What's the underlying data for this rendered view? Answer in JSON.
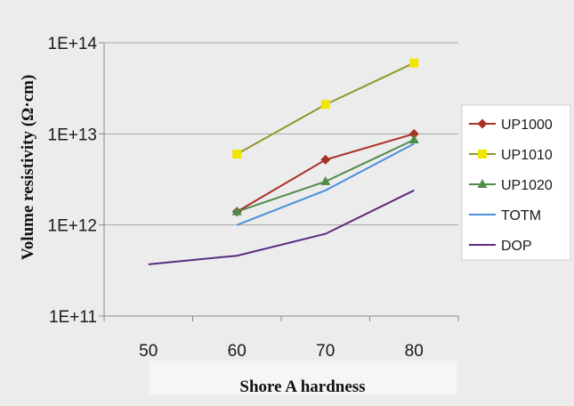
{
  "chart_data": {
    "type": "line",
    "title": "",
    "xlabel": "Shore A hardness",
    "ylabel": "Volume resistivity (Ω·cm)",
    "x_ticks": [
      50,
      60,
      70,
      80
    ],
    "xlim": [
      45,
      85
    ],
    "yscale": "log",
    "ylim": [
      100000000000.0,
      100000000000000.0
    ],
    "y_ticks": [
      100000000000.0,
      1000000000000.0,
      10000000000000.0,
      100000000000000.0
    ],
    "y_tick_labels": [
      "1E+11",
      "1E+12",
      "1E+13",
      "1E+14"
    ],
    "grid": "horizontal",
    "legend_position": "right",
    "series": [
      {
        "name": "UP1000",
        "color": "#a93226",
        "marker": "diamond",
        "x": [
          60,
          70,
          80
        ],
        "y": [
          1400000000000.0,
          5200000000000.0,
          10000000000000.0
        ]
      },
      {
        "name": "UP1010",
        "color": "#8c9a2c",
        "marker_color": "#f2e600",
        "marker": "square",
        "x": [
          60,
          70,
          80
        ],
        "y": [
          6000000000000.0,
          21000000000000.0,
          60000000000000.0
        ]
      },
      {
        "name": "UP1020",
        "color": "#4e8c4a",
        "marker": "triangle",
        "x": [
          60,
          70,
          80
        ],
        "y": [
          1400000000000.0,
          3000000000000.0,
          8600000000000.0
        ]
      },
      {
        "name": "TOTM",
        "color": "#4a90d9",
        "marker": "none",
        "x": [
          60,
          70,
          80
        ],
        "y": [
          1000000000000.0,
          2400000000000.0,
          7800000000000.0
        ]
      },
      {
        "name": "DOP",
        "color": "#5b2c83",
        "marker": "none",
        "x": [
          50,
          60,
          70,
          80
        ],
        "y": [
          370000000000.0,
          460000000000.0,
          800000000000.0,
          2400000000000.0
        ]
      }
    ]
  }
}
